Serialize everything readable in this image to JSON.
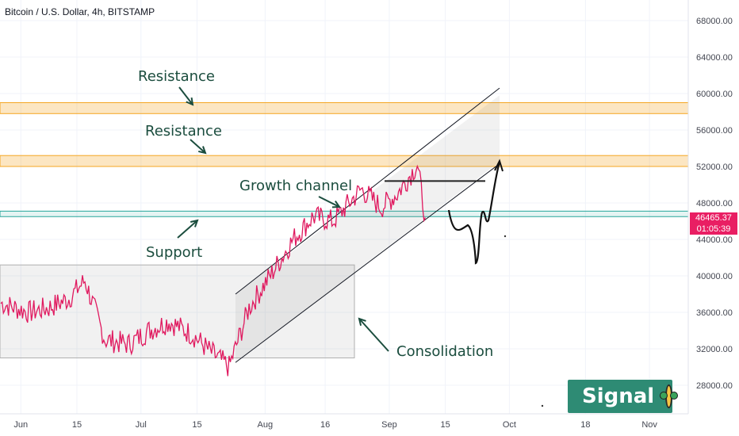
{
  "title": "Bitcoin / U.S. Dollar, 4h, BITSTAMP",
  "price_tag": {
    "price": "46465.37",
    "countdown": "01:05:39"
  },
  "signal_label": "Signal",
  "colors": {
    "candle": "#e0195f",
    "resistance": "#f5a623",
    "support": "#26a69a",
    "box": "#b0b0b0",
    "annot": "#1b4d3e",
    "signal_bg": "#2e8b74"
  },
  "chart_data": {
    "type": "line",
    "title": "Bitcoin / U.S. Dollar, 4h, BITSTAMP",
    "xlabel": "",
    "ylabel": "",
    "x_ticks": [
      "Jun",
      "15",
      "Jul",
      "15",
      "Aug",
      "16",
      "Sep",
      "15",
      "Oct",
      "18",
      "Nov"
    ],
    "y_ticks": [
      "68000.00",
      "64000.00",
      "60000.00",
      "56000.00",
      "52000.00",
      "48000.00",
      "44000.00",
      "40000.00",
      "36000.00",
      "32000.00",
      "28000.00"
    ],
    "ylim": [
      24000,
      70000
    ],
    "grid": true,
    "series": [
      {
        "name": "",
        "x": [
          "May 25",
          "Jun 1",
          "Jun 6",
          "Jun 11",
          "Jun 15",
          "Jun 20",
          "Jun 26",
          "Jul 1",
          "Jul 6",
          "Jul 12",
          "Jul 16",
          "Jul 21",
          "Jul 26",
          "Aug 1",
          "Aug 6",
          "Aug 11",
          "Aug 16",
          "Aug 23",
          "Aug 28",
          "Sep 1",
          "Sep 6",
          "Sep 8"
        ],
        "values": [
          37000,
          36000,
          36500,
          37500,
          39500,
          33000,
          32500,
          34000,
          35000,
          33500,
          31800,
          30000,
          36500,
          40500,
          44000,
          46500,
          46000,
          49500,
          47500,
          49000,
          52200,
          46400
        ]
      }
    ],
    "levels": [
      {
        "label": "Resistance",
        "low": 57800,
        "high": 59000
      },
      {
        "label": "Resistance",
        "low": 52000,
        "high": 53200
      },
      {
        "label": "Support",
        "low": 46500,
        "high": 47100
      }
    ],
    "annotations": [
      "Resistance",
      "Resistance",
      "Growth channel",
      "Support",
      "Consolidation"
    ]
  }
}
